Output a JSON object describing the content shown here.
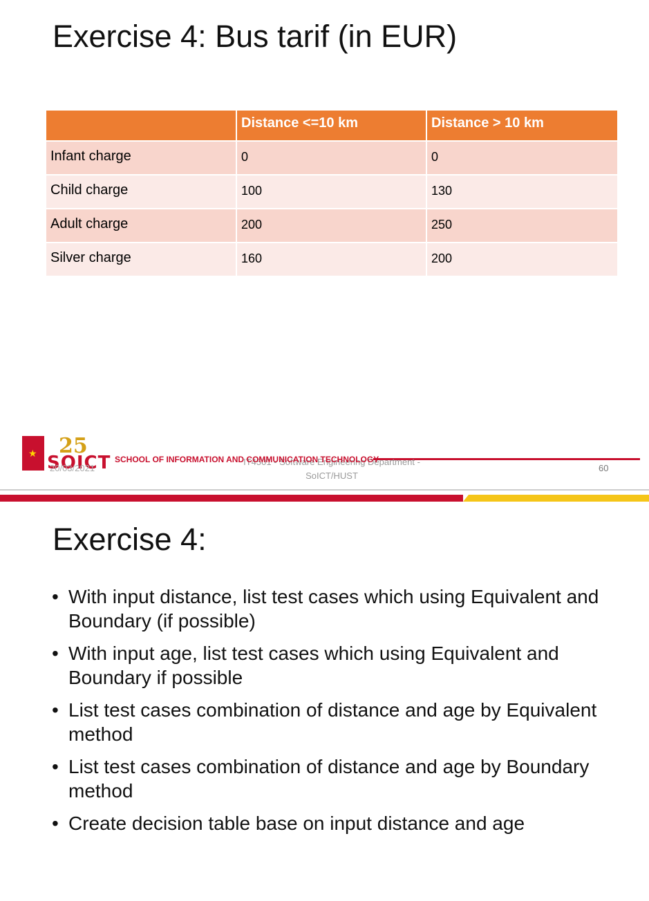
{
  "slide1": {
    "title": "Exercise 4: Bus tarif (in EUR)",
    "table": {
      "headers": [
        "",
        "Distance <=10 km",
        "Distance > 10 km"
      ],
      "rows": [
        [
          "Infant charge",
          "0",
          "0"
        ],
        [
          "Child charge",
          "100",
          "130"
        ],
        [
          "Adult charge",
          "200",
          "250"
        ],
        [
          "Silver charge",
          "160",
          "200"
        ]
      ]
    },
    "footer": {
      "logo_number": "25",
      "logo_text": "SOICT",
      "school": "SCHOOL OF INFORMATION AND COMMUNICATION TECHNOLOGY",
      "date": "20/03/2021",
      "department_line1": "IT4501 - Software Engineering Department -",
      "department_line2": "SoICT/HUST",
      "page_number": "60"
    }
  },
  "slide2": {
    "title": "Exercise 4:",
    "bullets": [
      "With input distance, list test cases which using Equivalent and Boundary (if possible)",
      "With input age, list test cases which using Equivalent and Boundary if possible",
      "List test cases combination of distance and age by Equivalent method",
      "List test cases combination of distance and age by Boundary method",
      "Create decision table base on input distance and age"
    ]
  },
  "colors": {
    "header_orange": "#ed7d31",
    "row_dark": "#f8d5cc",
    "row_light": "#fbeae7",
    "brand_red": "#c8102e",
    "accent_yellow": "#f5c518"
  }
}
